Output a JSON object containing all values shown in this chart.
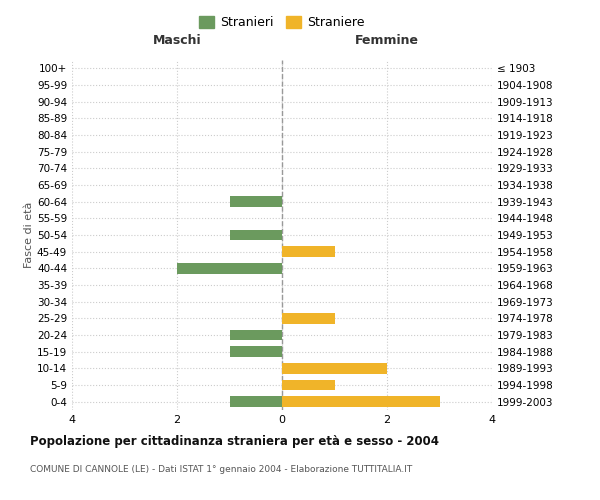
{
  "age_groups": [
    "0-4",
    "5-9",
    "10-14",
    "15-19",
    "20-24",
    "25-29",
    "30-34",
    "35-39",
    "40-44",
    "45-49",
    "50-54",
    "55-59",
    "60-64",
    "65-69",
    "70-74",
    "75-79",
    "80-84",
    "85-89",
    "90-94",
    "95-99",
    "100+"
  ],
  "birth_years": [
    "1999-2003",
    "1994-1998",
    "1989-1993",
    "1984-1988",
    "1979-1983",
    "1974-1978",
    "1969-1973",
    "1964-1968",
    "1959-1963",
    "1954-1958",
    "1949-1953",
    "1944-1948",
    "1939-1943",
    "1934-1938",
    "1929-1933",
    "1924-1928",
    "1919-1923",
    "1914-1918",
    "1909-1913",
    "1904-1908",
    "≤ 1903"
  ],
  "males": [
    -1,
    0,
    0,
    -1,
    -1,
    0,
    0,
    0,
    -2,
    0,
    -1,
    0,
    -1,
    0,
    0,
    0,
    0,
    0,
    0,
    0,
    0
  ],
  "females": [
    3,
    1,
    2,
    0,
    0,
    1,
    0,
    0,
    0,
    1,
    0,
    0,
    0,
    0,
    0,
    0,
    0,
    0,
    0,
    0,
    0
  ],
  "male_color": "#6b9a5e",
  "female_color": "#f0b429",
  "xlim": 4,
  "title": "Popolazione per cittadinanza straniera per età e sesso - 2004",
  "subtitle": "COMUNE DI CANNOLE (LE) - Dati ISTAT 1° gennaio 2004 - Elaborazione TUTTITALIA.IT",
  "ylabel_left": "Fasce di età",
  "legend_male": "Stranieri",
  "legend_female": "Straniere",
  "maschi_label": "Maschi",
  "femmine_label": "Femmine",
  "background_color": "#ffffff",
  "grid_color": "#cccccc"
}
